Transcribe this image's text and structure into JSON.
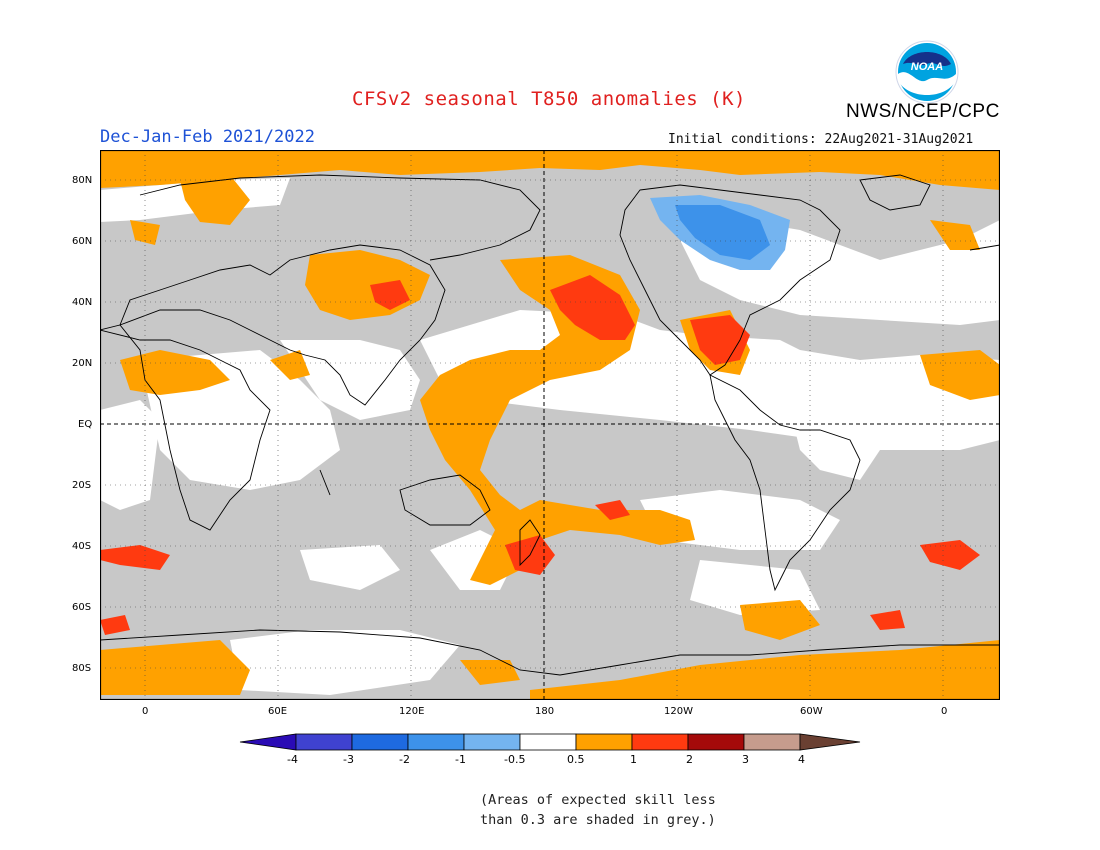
{
  "title": "CFSv2 seasonal T850 anomalies (K)",
  "organization": "NWS/NCEP/CPC",
  "logo_text": "NOAA",
  "period": "Dec-Jan-Feb 2021/2022",
  "initial_conditions": "Initial conditions: 22Aug2021-31Aug2021",
  "lat_labels": [
    "80N",
    "60N",
    "40N",
    "20N",
    "EQ",
    "20S",
    "40S",
    "60S",
    "80S"
  ],
  "lon_labels": [
    "0",
    "60E",
    "120E",
    "180",
    "120W",
    "60W",
    "0"
  ],
  "colorbar": {
    "labels": [
      "-4",
      "-3",
      "-2",
      "-1",
      "-0.5",
      "0.5",
      "1",
      "2",
      "3",
      "4"
    ],
    "colors": [
      "#2a0bb5",
      "#3f42d0",
      "#1e6ae0",
      "#3d92ea",
      "#74b4f0",
      "#ffffff",
      "#ffa100",
      "#ff3a10",
      "#a50a0a",
      "#c69c8d",
      "#6a4032"
    ]
  },
  "notes": [
    "(Areas of expected skill less",
    "than 0.3 are shaded in grey.)"
  ],
  "map_colors": {
    "grey": "#c8c8c8",
    "ocean": "#ffffff",
    "orange": "#ffa100",
    "red": "#ff3a10",
    "blue1": "#74b4f0",
    "blue2": "#3d92ea"
  }
}
